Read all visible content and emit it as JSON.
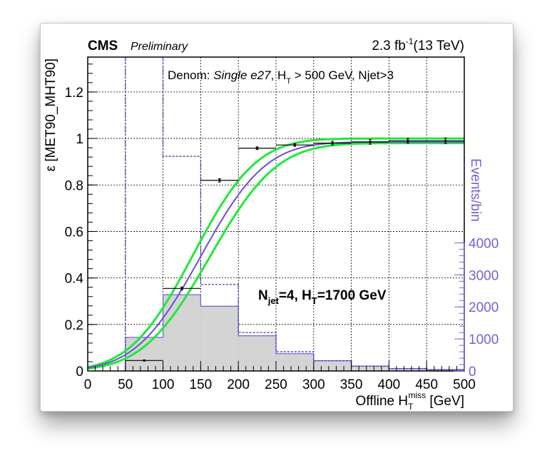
{
  "header": {
    "experiment": "CMS",
    "status": "Preliminary",
    "lumi_value": "2.3 fb",
    "lumi_exp": "-1",
    "energy": "(13 TeV)"
  },
  "selection": {
    "prefix": "Denom: ",
    "trigger": "Single e27",
    "sep": ", ",
    "ht_base": "H",
    "ht_sub": "T",
    "ht_cut": " > 500 GeV, Njet>3"
  },
  "category": {
    "njet_base": "N",
    "njet_sub": "jet",
    "njet_value": "=4, ",
    "ht_base": "H",
    "ht_sub": "T",
    "ht_value": "=1700 GeV"
  },
  "colors": {
    "efficiency_fit": "#6a4fd0",
    "fit_band": "#22e83a",
    "efficiency_points": "#000000",
    "histogram_fill": "#d4d4d4",
    "histogram_line": "#6a6ad8",
    "reference_histogram": "#3a3ab8",
    "right_axis": "#7a5fcf"
  },
  "chart_data": {
    "type": "line",
    "xlabel_base": "Offline H",
    "xlabel_sub": "T",
    "xlabel_sup": "miss",
    "xlabel_unit": " [GeV]",
    "ylabel": "ε [MET90_MHT90]",
    "y2label": "Events/bin",
    "xlim": [
      0,
      500
    ],
    "ylim": [
      0,
      1.35
    ],
    "y2lim": [
      0,
      9800
    ],
    "grid": true,
    "x_ticks": [
      "0",
      "50",
      "100",
      "150",
      "200",
      "250",
      "300",
      "350",
      "400",
      "450",
      "500"
    ],
    "y_ticks": [
      "0",
      "0.2",
      "0.4",
      "0.6",
      "0.8",
      "1",
      "1.2"
    ],
    "y2_ticks": [
      "0",
      "1000",
      "2000",
      "3000",
      "4000"
    ],
    "efficiency_points": [
      {
        "x": 75,
        "xerr": 25,
        "y": 0.045,
        "yerr": 0.002
      },
      {
        "x": 125,
        "xerr": 25,
        "y": 0.355,
        "yerr": 0.006
      },
      {
        "x": 175,
        "xerr": 25,
        "y": 0.82,
        "yerr": 0.007
      },
      {
        "x": 225,
        "xerr": 25,
        "y": 0.958,
        "yerr": 0.006
      },
      {
        "x": 275,
        "xerr": 25,
        "y": 0.972,
        "yerr": 0.006
      },
      {
        "x": 325,
        "xerr": 25,
        "y": 0.98,
        "yerr": 0.008
      },
      {
        "x": 375,
        "xerr": 25,
        "y": 0.985,
        "yerr": 0.01
      },
      {
        "x": 425,
        "xerr": 25,
        "y": 0.99,
        "yerr": 0.01
      },
      {
        "x": 475,
        "xerr": 25,
        "y": 0.99,
        "yerr": 0.012
      }
    ],
    "fit": {
      "plateau": 0.985,
      "mean": 150,
      "width": 68
    },
    "fit_band_up": {
      "plateau": 1.0,
      "mean": 140,
      "width": 66
    },
    "fit_band_down": {
      "plateau": 0.98,
      "mean": 162,
      "width": 70
    },
    "events_per_bin": {
      "bin_edges": [
        50,
        100,
        150,
        200,
        250,
        300,
        350,
        400,
        450,
        500
      ],
      "counts": [
        1050,
        2380,
        2020,
        1100,
        540,
        320,
        150,
        75,
        40
      ]
    },
    "reference_events_per_bin": {
      "bin_edges": [
        50,
        100,
        150,
        200,
        250,
        300,
        350,
        400,
        450,
        500
      ],
      "counts": [
        9800,
        6700,
        2700,
        1200,
        600,
        320,
        150,
        75,
        40
      ]
    }
  }
}
